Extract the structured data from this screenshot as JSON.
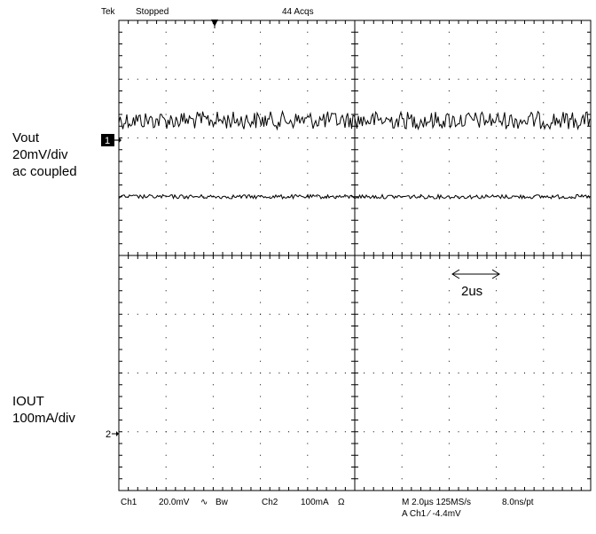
{
  "status_bar": {
    "brand": "Tek",
    "state": "Stopped",
    "acquisitions": "44 Acqs"
  },
  "channel_labels": {
    "ch1_name": "Vout",
    "ch1_scale": "20mV/div",
    "ch1_coupling": "ac coupled",
    "ch2_name": "IOUT",
    "ch2_scale": "100mA/div"
  },
  "markers": {
    "ch1": "1",
    "ch2": "2"
  },
  "annotation": {
    "time_span": "2us"
  },
  "footer": {
    "ch1_label": "Ch1",
    "ch1_scale": "20.0mV",
    "ch1_coupling_symbol": "∿",
    "ch1_bw": "Bw",
    "ch2_label": "Ch2",
    "ch2_scale": "100mA",
    "ch2_impedance": "Ω",
    "timebase": "M 2.0µs 125MS/s",
    "record": "8.0ns/pt",
    "trigger": "A  Ch1  ⁄  -4.4mV"
  },
  "chart_data": {
    "type": "line",
    "x_divisions": 10,
    "y_divisions": 8,
    "time_per_div_us": 2.0,
    "series": [
      {
        "name": "Vout",
        "channel": 1,
        "scale_per_div": "20mV",
        "offset_div": 2.3,
        "noise_pp_div": 0.3,
        "color": "#000000"
      },
      {
        "name": "IOUT",
        "channel": 2,
        "scale_per_div": "100mA",
        "offset_div": 1.0,
        "noise_pp_div": 0.07,
        "color": "#000000"
      }
    ],
    "annotations": [
      {
        "text": "2us",
        "span_div": 1.0,
        "start_div": 6.5
      }
    ],
    "grid": true
  }
}
